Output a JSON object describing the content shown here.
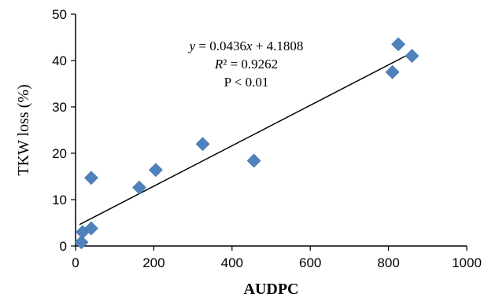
{
  "chart_data": {
    "type": "scatter",
    "xlabel": "AUDPC",
    "ylabel": "TKW loss (%)",
    "xlim": [
      0,
      1000
    ],
    "ylim": [
      0,
      50
    ],
    "x_ticks": [
      0,
      200,
      400,
      600,
      800,
      1000
    ],
    "y_ticks": [
      0,
      10,
      20,
      30,
      40,
      50
    ],
    "x_tick_labels": [
      "0",
      "200",
      "400",
      "600",
      "800",
      "1000"
    ],
    "y_tick_labels": [
      "0",
      "10",
      "20",
      "30",
      "40",
      "50"
    ],
    "grid": false,
    "legend": "none",
    "marker": "diamond",
    "marker_color": "#4f81bd",
    "series": [
      {
        "points": [
          {
            "x": 15,
            "y": 0.8
          },
          {
            "x": 18,
            "y": 3.0
          },
          {
            "x": 40,
            "y": 3.8
          },
          {
            "x": 40,
            "y": 14.7
          },
          {
            "x": 163,
            "y": 12.6
          },
          {
            "x": 205,
            "y": 16.4
          },
          {
            "x": 325,
            "y": 22.0
          },
          {
            "x": 456,
            "y": 18.4
          },
          {
            "x": 810,
            "y": 37.5
          },
          {
            "x": 825,
            "y": 43.5
          },
          {
            "x": 860,
            "y": 41.0
          }
        ]
      }
    ],
    "trendline": {
      "slope": 0.0436,
      "intercept": 4.1808,
      "x_range": [
        10,
        860
      ],
      "color": "#000000"
    },
    "annotation": {
      "equation_y": "y",
      "equation_x": "x",
      "equation_eq": " = 0.0436",
      "equation_rest": " + 4.1808",
      "r2_r": "R",
      "r2_rest": "² = 0.9262",
      "p_value": "P < 0.01"
    }
  }
}
